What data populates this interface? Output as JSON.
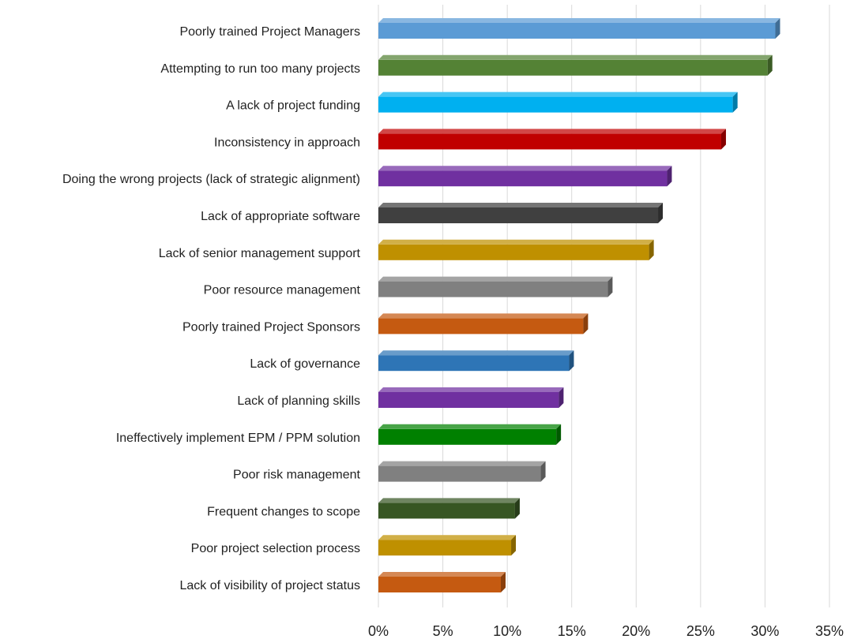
{
  "chart_data": {
    "type": "bar",
    "orientation": "horizontal",
    "title": "",
    "xlabel": "",
    "ylabel": "",
    "xlim": [
      0,
      35
    ],
    "grid": true,
    "categories": [
      "Poorly trained Project Managers",
      "Attempting to run too many projects",
      "A lack of project funding",
      "Inconsistency in approach",
      "Doing the wrong projects (lack of strategic alignment)",
      "Lack of appropriate software",
      "Lack of senior management support",
      "Poor resource management",
      "Poorly trained Project Sponsors",
      "Lack of governance",
      "Lack of planning skills",
      "Ineffectively implement EPM / PPM solution",
      "Poor risk management",
      "Frequent changes to scope",
      "Poor project selection process",
      "Lack of visibility of project status"
    ],
    "values": [
      30.8,
      30.2,
      27.5,
      26.6,
      22.4,
      21.7,
      21.0,
      17.8,
      15.9,
      14.8,
      14.0,
      13.8,
      12.6,
      10.6,
      10.3,
      9.5
    ],
    "colors": [
      "#5b9bd5",
      "#548235",
      "#00b0f0",
      "#c00000",
      "#7030a0",
      "#404040",
      "#bf9000",
      "#808080",
      "#c55a11",
      "#2e75b6",
      "#7030a0",
      "#008000",
      "#808080",
      "#375623",
      "#bf9000",
      "#c55a11"
    ],
    "ticks": [
      "0%",
      "5%",
      "10%",
      "15%",
      "20%",
      "25%",
      "30%",
      "35%"
    ],
    "tick_values": [
      0,
      5,
      10,
      15,
      20,
      25,
      30,
      35
    ]
  }
}
